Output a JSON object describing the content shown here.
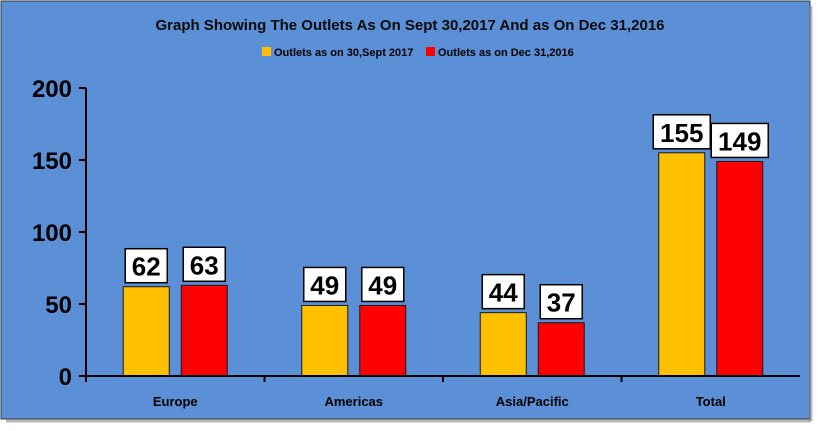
{
  "chart_data": {
    "type": "bar",
    "title": "Graph Showing The Outlets As On Sept 30,2017 And as On Dec 31,2016",
    "categories": [
      "Europe",
      "Americas",
      "Asia/Pacific",
      "Total"
    ],
    "series": [
      {
        "name": "Outlets as on 30,Sept 2017",
        "values": [
          62,
          49,
          44,
          155
        ],
        "color": "#FFC000"
      },
      {
        "name": "Outlets as on Dec 31,2016",
        "values": [
          63,
          49,
          37,
          149
        ],
        "color": "#FF0000"
      }
    ],
    "ylim": [
      0,
      200
    ],
    "yticks": [
      "0",
      "50",
      "100",
      "150",
      "200"
    ],
    "legend_position": "top-center",
    "grid": false,
    "background_color": "#5B8FD6",
    "label_box_color": "#FFFFFF"
  }
}
